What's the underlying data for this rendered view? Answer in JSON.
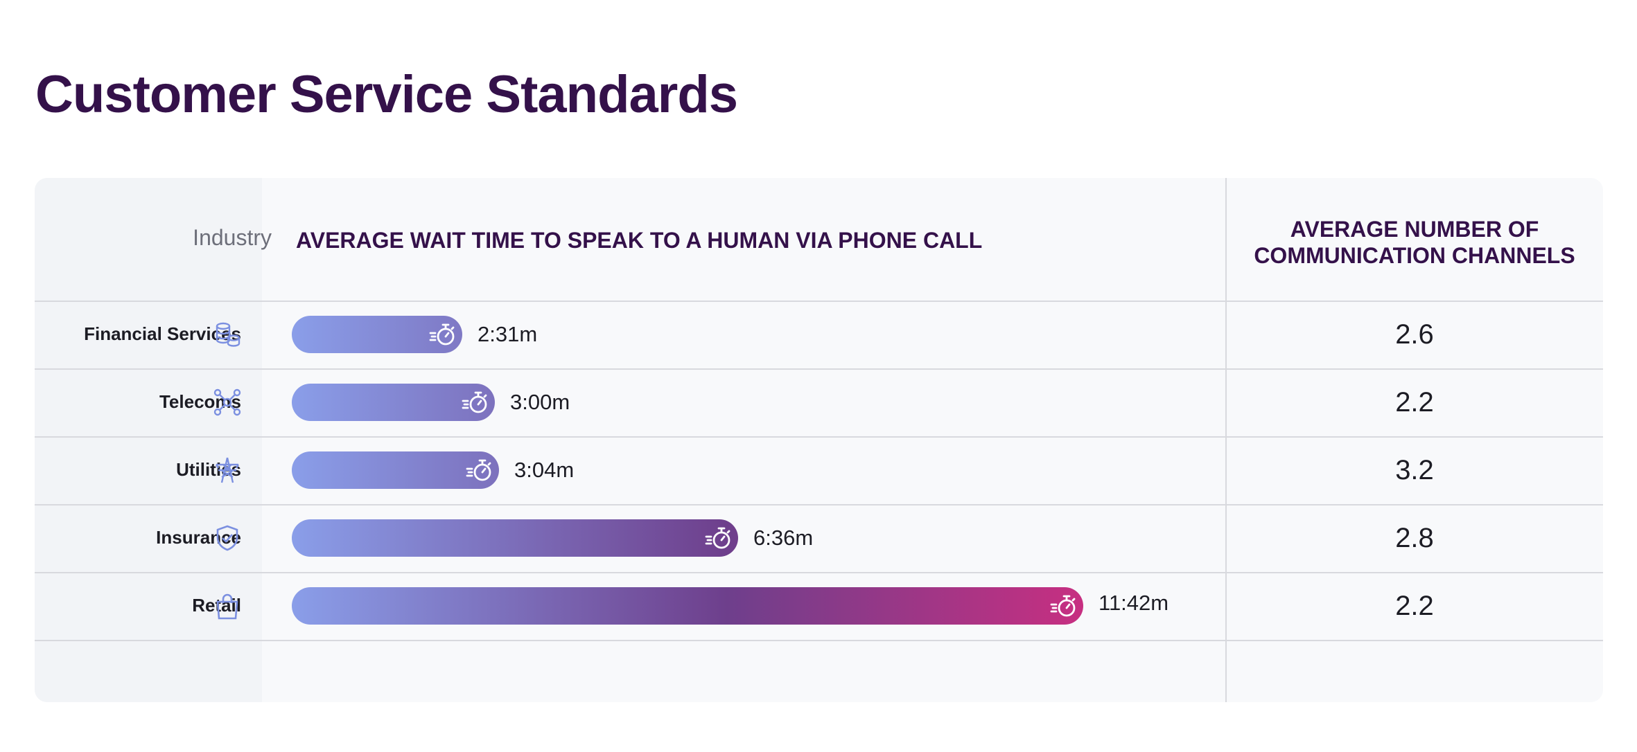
{
  "title": "Customer Service Standards",
  "headers": {
    "industry": "Industry",
    "wait_time": "AVERAGE WAIT TIME TO SPEAK TO A HUMAN VIA PHONE CALL",
    "channels": "AVERAGE NUMBER OF\nCOMMUNICATION CHANNELS"
  },
  "colors": {
    "title": "#34114a",
    "bar_start": "#8a9ee9",
    "bar_mid": "#6e3f8c",
    "bar_end": "#c72f81",
    "icon": "#7b8fe0"
  },
  "chart_data": {
    "type": "bar",
    "categories": [
      "Financial Services",
      "Telecoms",
      "Utilities",
      "Insurance",
      "Retail"
    ],
    "icons": [
      "coins-icon",
      "network-icon",
      "power-tower-icon",
      "shield-check-icon",
      "shopping-bag-icon"
    ],
    "series": [
      {
        "values_seconds": [
          151,
          180,
          184,
          396,
          702
        ],
        "labels": [
          "2:31m",
          "3:00m",
          "3:04m",
          "6:36m",
          "11:42m"
        ]
      }
    ],
    "channels": [
      "2.6",
      "2.2",
      "3.2",
      "2.8",
      "2.2"
    ]
  }
}
